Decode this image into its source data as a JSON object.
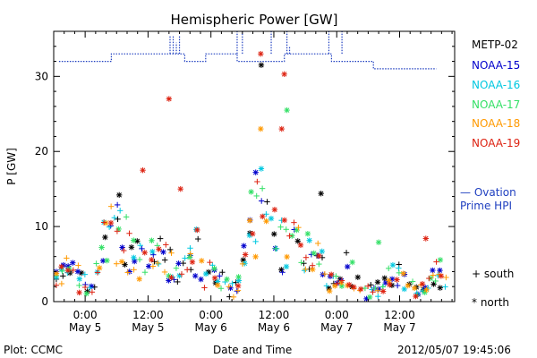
{
  "chart_data": {
    "type": "scatter",
    "title": "Hemispheric Power [GW]",
    "xlabel": "Date and Time",
    "ylabel": "P [GW]",
    "ylim": [
      0,
      36
    ],
    "xlim_hours_label": [
      "2012-05-04 18:00",
      "2012-05-07 22:30"
    ],
    "yticks": [
      0,
      10,
      20,
      30
    ],
    "xticks": [
      {
        "t": 6,
        "time": "0:00",
        "date": "May 5"
      },
      {
        "t": 18,
        "time": "12:00",
        "date": "May 5"
      },
      {
        "t": 30,
        "time": "0:00",
        "date": "May 6"
      },
      {
        "t": 42,
        "time": "12:00",
        "date": "May 6"
      },
      {
        "t": 54,
        "time": "0:00",
        "date": "May 7"
      },
      {
        "t": 66,
        "time": "12:00",
        "date": "May 7"
      }
    ],
    "legend_position": "right",
    "series": [
      {
        "name": "METP-02",
        "color": "#000000"
      },
      {
        "name": "NOAA-15",
        "color": "#0000cc"
      },
      {
        "name": "NOAA-16",
        "color": "#00c8e0"
      },
      {
        "name": "NOAA-17",
        "color": "#33e066"
      },
      {
        "name": "NOAA-18",
        "color": "#ff9900"
      },
      {
        "name": "NOAA-19",
        "color": "#dd2211"
      }
    ],
    "ovation": {
      "name": "— Ovation Prime HPI",
      "color": "#2040c0",
      "points": [
        [
          1,
          32
        ],
        [
          11,
          32
        ],
        [
          11,
          33
        ],
        [
          25,
          33
        ],
        [
          25,
          32
        ],
        [
          29,
          32
        ],
        [
          29,
          33
        ],
        [
          35,
          33
        ],
        [
          35,
          32
        ],
        [
          44,
          32
        ],
        [
          44,
          33
        ],
        [
          53,
          33
        ],
        [
          53,
          32
        ],
        [
          61,
          32
        ],
        [
          61,
          31
        ],
        [
          73,
          31
        ]
      ],
      "spikes": [
        [
          22.2,
          35.5
        ],
        [
          22.8,
          35.5
        ],
        [
          23.4,
          34.5
        ],
        [
          24.0,
          35.5
        ],
        [
          35.0,
          36
        ],
        [
          36.0,
          36
        ],
        [
          41.5,
          36
        ],
        [
          44.5,
          36
        ],
        [
          45.0,
          34
        ],
        [
          52.5,
          36
        ],
        [
          55.0,
          36
        ]
      ]
    },
    "markers_legend": [
      {
        "symbol": "+",
        "label": "south"
      },
      {
        "symbol": "*",
        "label": "north"
      }
    ]
  },
  "footer": {
    "left": "Plot: CCMC",
    "center": "Date and Time",
    "right": "2012/05/07 19:45:06"
  }
}
